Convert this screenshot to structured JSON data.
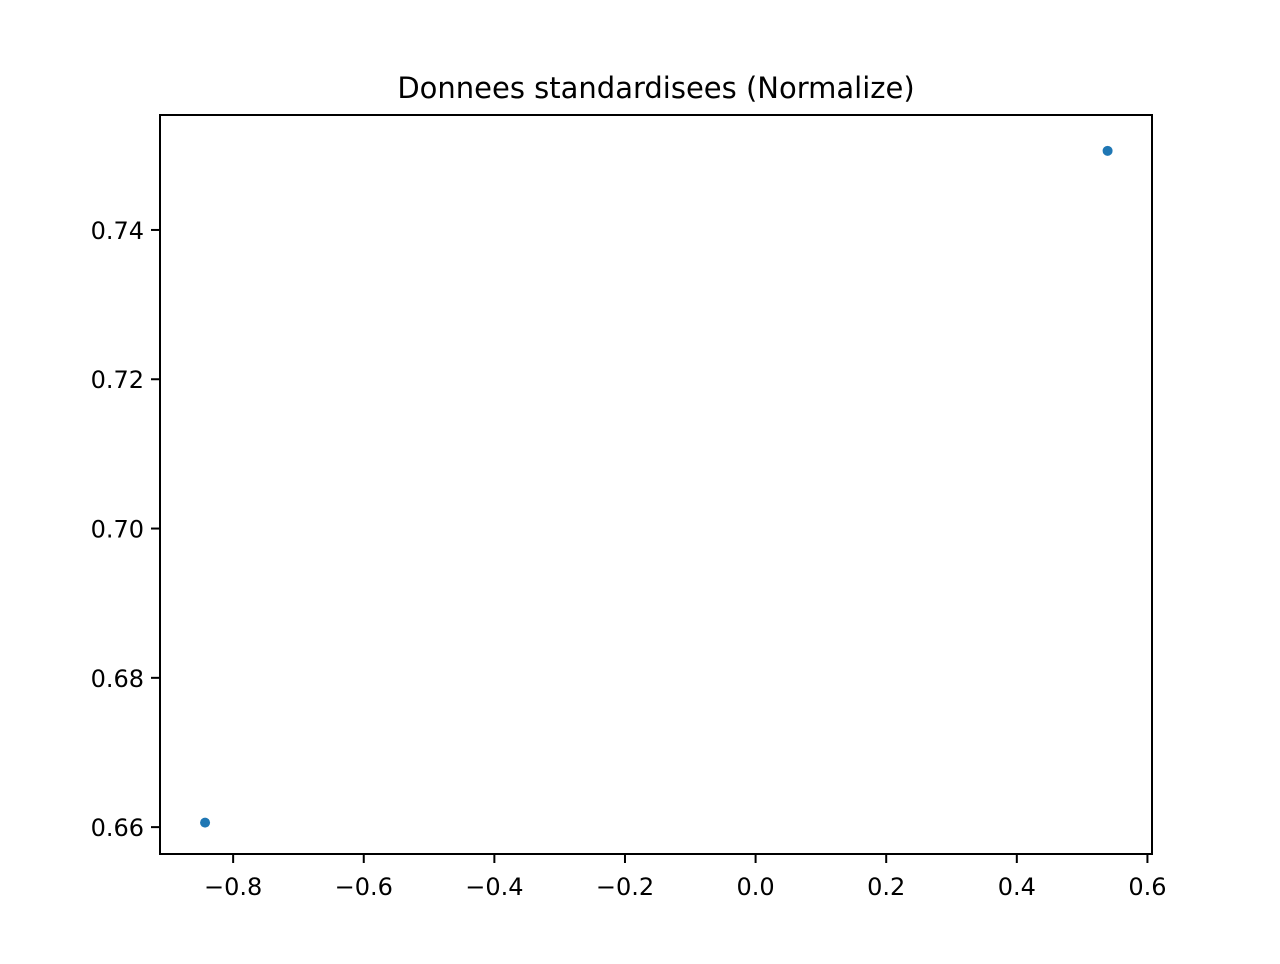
{
  "chart_data": {
    "type": "scatter",
    "title": "Donnees standardisees (Normalize)",
    "xlabel": "",
    "ylabel": "",
    "x": [
      -0.843,
      0.539
    ],
    "y": [
      0.6606,
      0.7506
    ],
    "xlim": [
      -0.912,
      0.607
    ],
    "ylim": [
      0.6564,
      0.7554
    ],
    "xticks": [
      -0.8,
      -0.6,
      -0.4,
      -0.2,
      0.0,
      0.2,
      0.4,
      0.6
    ],
    "xtick_labels": [
      "−0.8",
      "−0.6",
      "−0.4",
      "−0.2",
      "0.0",
      "0.2",
      "0.4",
      "0.6"
    ],
    "yticks": [
      0.66,
      0.68,
      0.7,
      0.72,
      0.74
    ],
    "ytick_labels": [
      "0.66",
      "0.68",
      "0.70",
      "0.72",
      "0.74"
    ],
    "grid": false,
    "marker_color": "#1f77b4"
  }
}
